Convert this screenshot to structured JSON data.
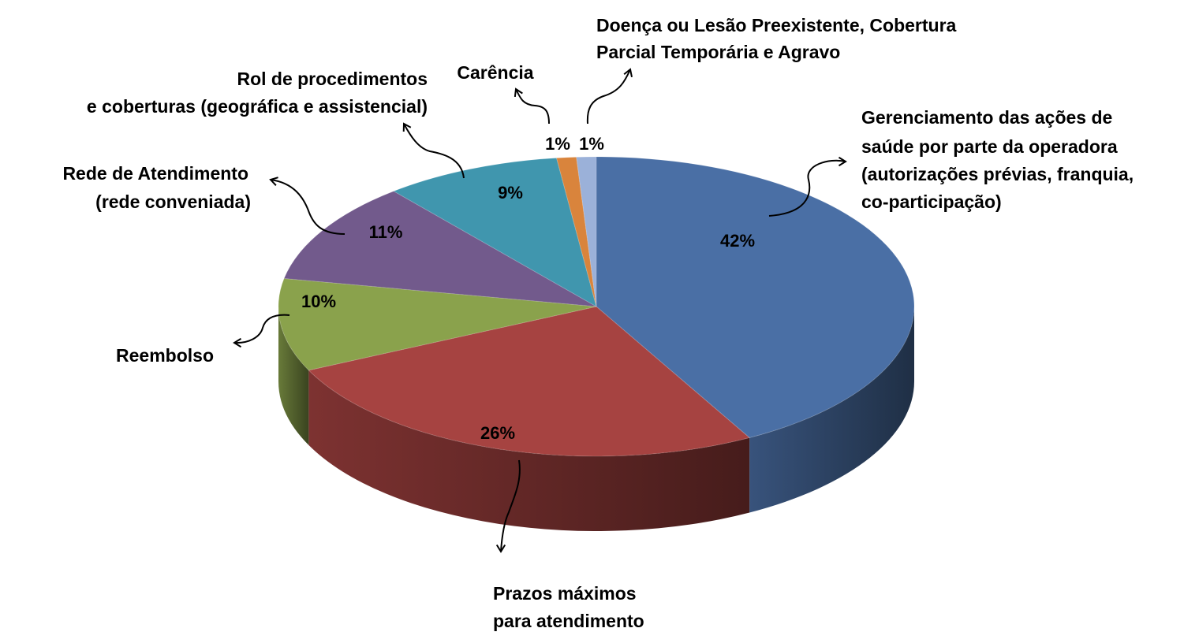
{
  "chart_data": {
    "type": "pie",
    "style": "3d-tilted",
    "slices": [
      {
        "label": "Gerenciamento das ações de saúde por parte da operadora (autorizações prévias, franquia, co-participação)",
        "label_lines": [
          "Gerenciamento das ações de",
          "saúde por parte da operadora",
          "(autorizações prévias, franquia,",
          "co-participação)"
        ],
        "value": 42,
        "value_label": "42%",
        "color": "#4A6FA5"
      },
      {
        "label": "Prazos máximos para atendimento",
        "label_lines": [
          "Prazos máximos",
          "para atendimento"
        ],
        "value": 26,
        "value_label": "26%",
        "color": "#A64341"
      },
      {
        "label": "Reembolso",
        "label_lines": [
          "Reembolso"
        ],
        "value": 10,
        "value_label": "10%",
        "color": "#8AA24C"
      },
      {
        "label": "Rede de Atendimento (rede conveniada)",
        "label_lines": [
          "Rede de Atendimento",
          "(rede conveniada)"
        ],
        "value": 11,
        "value_label": "11%",
        "color": "#725A8C"
      },
      {
        "label": "Rol de procedimentos e coberturas (geográfica e assistencial)",
        "label_lines": [
          "Rol de procedimentos",
          "e coberturas (geográfica e assistencial)"
        ],
        "value": 9,
        "value_label": "9%",
        "color": "#4096AE"
      },
      {
        "label": "Carência",
        "label_lines": [
          "Carência"
        ],
        "value": 1,
        "value_label": "1%",
        "color": "#D9843C"
      },
      {
        "label": "Doença ou Lesão Preexistente, Cobertura Parcial Temporária e Agravo",
        "label_lines": [
          "Doença ou Lesão Preexistente, Cobertura",
          "Parcial Temporária e Agravo"
        ],
        "value": 1,
        "value_label": "1%",
        "color": "#9BB1D9"
      }
    ]
  }
}
